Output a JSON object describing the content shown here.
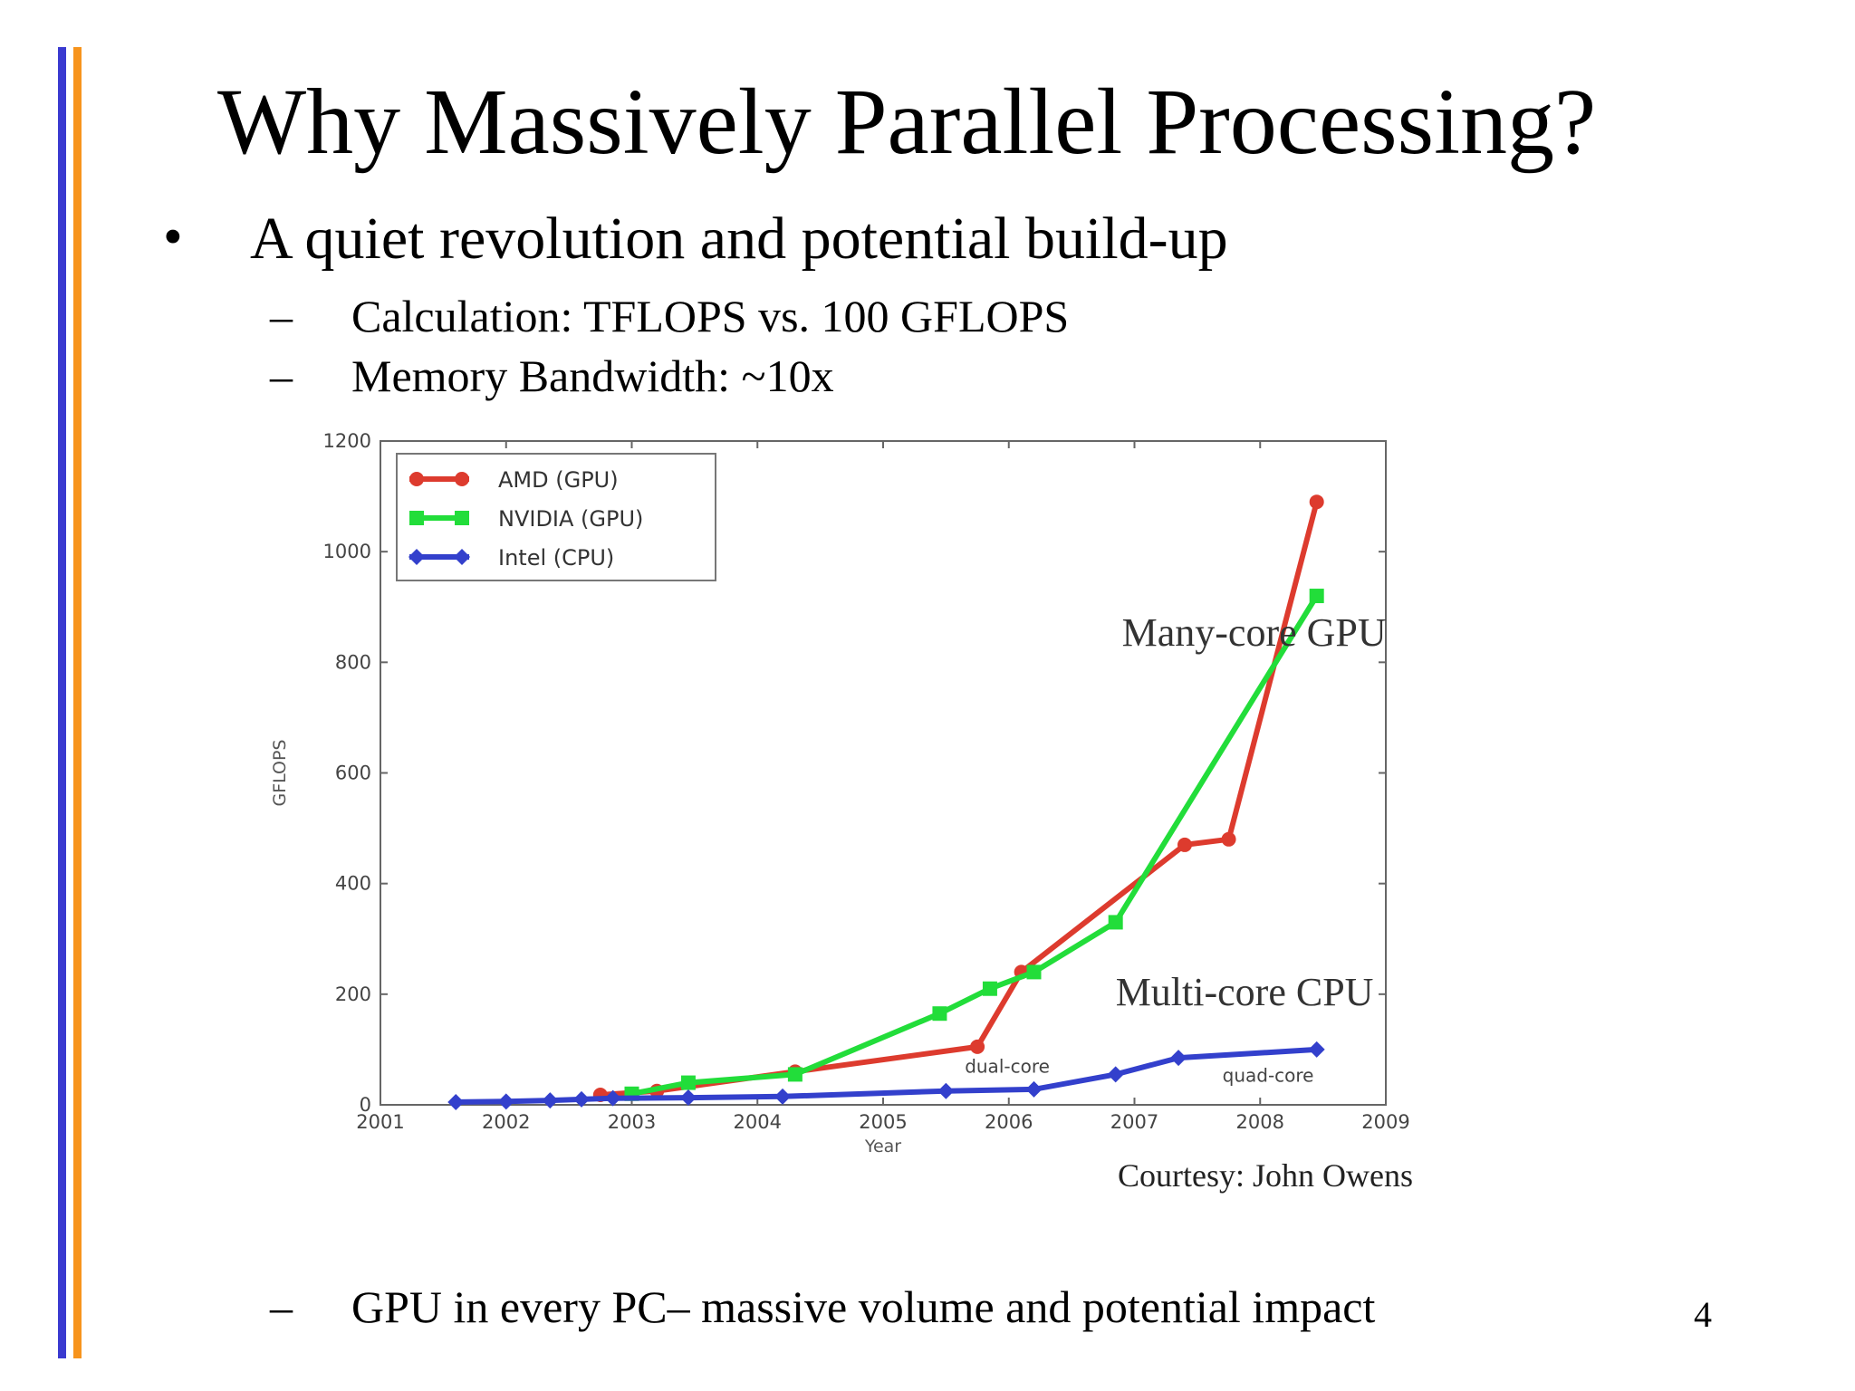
{
  "slide": {
    "title": "Why Massively Parallel Processing?",
    "bullet_symbol": "•",
    "bullet": "A quiet revolution and potential build-up",
    "dash_symbol": "–",
    "sub1": "Calculation: TFLOPS vs. 100 GFLOPS",
    "sub2": "Memory Bandwidth: ~10x",
    "sub3": "GPU in every PC– massive volume and potential impact",
    "page_number": "4",
    "accent_colors": {
      "bar1": "#3a3ad0",
      "bar2": "#f7941d"
    }
  },
  "chart_data": {
    "type": "line",
    "xlabel": "Year",
    "ylabel": "GFLOPS",
    "xlim": [
      2001,
      2009
    ],
    "ylim": [
      0,
      1200
    ],
    "x_ticks": [
      "2001",
      "2002",
      "2003",
      "2004",
      "2005",
      "2006",
      "2007",
      "2008",
      "2009"
    ],
    "y_ticks": [
      "0",
      "200",
      "400",
      "600",
      "800",
      "1000",
      "1200"
    ],
    "legend_position": "top-left",
    "series": [
      {
        "name": "AMD (GPU)",
        "color": "#dd3b2e",
        "marker": "circle",
        "x": [
          2002.75,
          2003.2,
          2004.3,
          2005.75,
          2006.1,
          2007.4,
          2007.75,
          2008.45
        ],
        "y": [
          18,
          25,
          60,
          105,
          240,
          470,
          480,
          1090
        ]
      },
      {
        "name": "NVIDIA (GPU)",
        "color": "#22dd3a",
        "marker": "square",
        "x": [
          2003.0,
          2003.45,
          2004.3,
          2005.45,
          2005.85,
          2006.2,
          2006.85,
          2008.45
        ],
        "y": [
          20,
          40,
          55,
          165,
          210,
          240,
          330,
          920
        ]
      },
      {
        "name": "Intel (CPU)",
        "color": "#3340cc",
        "marker": "diamond",
        "x": [
          2001.6,
          2002.0,
          2002.35,
          2002.6,
          2002.85,
          2003.45,
          2004.2,
          2005.5,
          2006.2,
          2006.85,
          2007.35,
          2008.45
        ],
        "y": [
          5,
          6,
          8,
          10,
          12,
          13,
          15,
          25,
          28,
          55,
          85,
          100
        ]
      }
    ],
    "annotations": [
      {
        "text": "Many-core GPU",
        "x": 2006.9,
        "y": 830,
        "size": "big"
      },
      {
        "text": "Multi-core CPU",
        "x": 2006.85,
        "y": 180,
        "size": "big"
      },
      {
        "text": "dual-core",
        "x": 2005.65,
        "y": 58,
        "size": "small"
      },
      {
        "text": "quad-core",
        "x": 2007.7,
        "y": 42,
        "size": "small"
      }
    ],
    "courtesy": "Courtesy: John Owens"
  }
}
